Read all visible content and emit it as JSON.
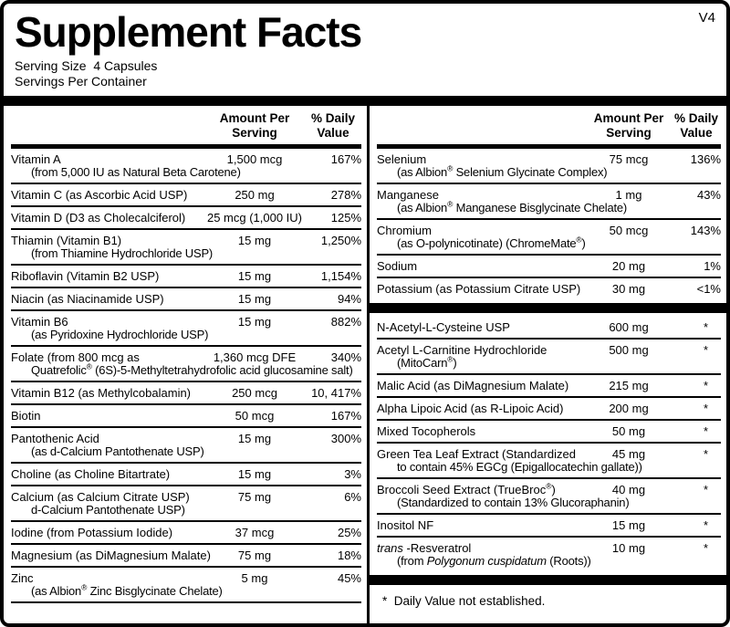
{
  "version_tag": "V4",
  "header": {
    "title": "Supplement Facts",
    "serving_size": "Serving Size  4 Capsules",
    "servings_per_container": "Servings Per Container"
  },
  "column_headers": {
    "amount_line1": "Amount Per",
    "amount_line2": "Serving",
    "dv_line1": "% Daily",
    "dv_line2": "Value"
  },
  "left_column": {
    "rows": [
      {
        "name": "Vitamin A",
        "line2": "(from 5,000 IU as Natural Beta Carotene)",
        "amount": "1,500 mcg",
        "dv": "167%"
      },
      {
        "name": "Vitamin C (as Ascorbic Acid USP)",
        "amount": "250 mg",
        "dv": "278%"
      },
      {
        "name": "Vitamin D (D3 as Cholecalciferol)",
        "amount": "25 mcg (1,000 IU)",
        "dv": "125%"
      },
      {
        "name": "Thiamin (Vitamin B1)",
        "line2": "(from Thiamine Hydrochloride USP)",
        "amount": "15 mg",
        "dv": "1,250%"
      },
      {
        "name": "Riboflavin (Vitamin B2 USP)",
        "amount": "15 mg",
        "dv": "1,154%"
      },
      {
        "name": "Niacin (as Niacinamide USP)",
        "amount": "15 mg",
        "dv": "94%"
      },
      {
        "name": "Vitamin B6",
        "line2": "(as Pyridoxine Hydrochloride USP)",
        "amount": "15 mg",
        "dv": "882%"
      },
      {
        "name": "Folate (from 800 mcg as",
        "line2": "Quatrefolic® (6S)-5-Methyltetrahydrofolic acid glucosamine salt)",
        "amount": "1,360 mcg DFE",
        "dv": "340%"
      },
      {
        "name": "Vitamin B12 (as Methylcobalamin)",
        "amount": "250 mcg",
        "dv": "10, 417%"
      },
      {
        "name": "Biotin",
        "amount": "50 mcg",
        "dv": "167%"
      },
      {
        "name": "Pantothenic Acid",
        "line2": "(as d-Calcium Pantothenate USP)",
        "amount": "15 mg",
        "dv": "300%"
      },
      {
        "name": "Choline (as Choline Bitartrate)",
        "amount": "15 mg",
        "dv": "3%"
      },
      {
        "name": "Calcium (as Calcium Citrate USP)",
        "line2": "d-Calcium Pantothenate USP)",
        "amount": "75 mg",
        "dv": "6%"
      },
      {
        "name": "Iodine (from Potassium Iodide)",
        "amount": "37 mcg",
        "dv": "25%"
      },
      {
        "name": "Magnesium (as DiMagnesium Malate)",
        "amount": "75 mg",
        "dv": "18%"
      },
      {
        "name": "Zinc",
        "line2": "(as Albion® Zinc Bisglycinate Chelate)",
        "amount": "5 mg",
        "dv": "45%"
      }
    ]
  },
  "right_column": {
    "rows": [
      {
        "name": "Selenium",
        "line2": "(as Albion® Selenium Glycinate Complex)",
        "amount": "75 mcg",
        "dv": "136%"
      },
      {
        "name": "Manganese",
        "line2": "(as Albion® Manganese Bisglycinate Chelate)",
        "amount": "1 mg",
        "dv": "43%"
      },
      {
        "name": "Chromium",
        "line2": "(as O-polynicotinate) (ChromeMate®)",
        "amount": "50 mcg",
        "dv": "143%"
      },
      {
        "name": "Sodium",
        "amount": "20 mg",
        "dv": "1%"
      },
      {
        "name": "Potassium (as Potassium Citrate USP)",
        "amount": "30 mg",
        "dv": "<1%",
        "sep": false
      },
      {
        "type": "bar"
      },
      {
        "name": "N-Acetyl-L-Cysteine USP",
        "amount": "600 mg",
        "dv": "*"
      },
      {
        "name": "Acetyl L-Carnitine Hydrochloride",
        "line2": "(MitoCarn®)",
        "amount": "500 mg",
        "dv": "*"
      },
      {
        "name": "Malic Acid (as DiMagnesium Malate)",
        "amount": "215 mg",
        "dv": "*"
      },
      {
        "name": "Alpha Lipoic Acid (as R-Lipoic Acid)",
        "amount": "200 mg",
        "dv": "*"
      },
      {
        "name": "Mixed Tocopherols",
        "amount": "50 mg",
        "dv": "*"
      },
      {
        "name": "Green Tea Leaf Extract (Standardized",
        "line2": "to contain 45% EGCg (Epigallocatechin gallate))",
        "amount": "45 mg",
        "dv": "*"
      },
      {
        "name": "Broccoli Seed Extract (TrueBroc®)",
        "line2": "(Standardized to contain 13% Glucoraphanin)",
        "amount": "40 mg",
        "dv": "*"
      },
      {
        "name": "Inositol NF",
        "amount": "15 mg",
        "dv": "*"
      },
      {
        "name": "*trans* -Resveratrol",
        "line2": "(from *Polygonum cuspidatum* (Roots))",
        "amount": "10 mg",
        "dv": "*",
        "sep": false
      },
      {
        "type": "bar"
      }
    ]
  },
  "footnote": "*  Daily Value not established."
}
